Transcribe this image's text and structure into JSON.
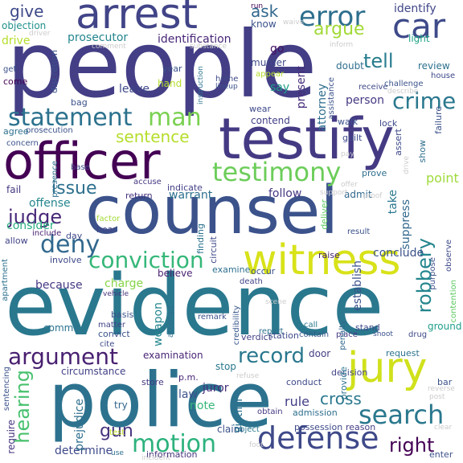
{
  "wordcloud": {
    "words": [
      {
        "text": "people",
        "color": "#433e85"
      },
      {
        "text": "evidence",
        "color": "#2a788e"
      },
      {
        "text": "counsel",
        "color": "#3b528b"
      },
      {
        "text": "police",
        "color": "#2c728e"
      },
      {
        "text": "officer",
        "color": "#440154"
      },
      {
        "text": "testify",
        "color": "#443a83"
      },
      {
        "text": "arrest",
        "color": "#414487"
      },
      {
        "text": "witness",
        "color": "#d8e219"
      },
      {
        "text": "jury",
        "color": "#d0e11c"
      },
      {
        "text": "defense",
        "color": "#3e4989"
      },
      {
        "text": "testimony",
        "color": "#6ccd5a"
      },
      {
        "text": "error",
        "color": "#2e6f8e"
      },
      {
        "text": "car",
        "color": "#3e4a89"
      },
      {
        "text": "statement",
        "color": "#2c728e"
      },
      {
        "text": "man",
        "color": "#7ad151"
      },
      {
        "text": "crime",
        "color": "#2a788e"
      },
      {
        "text": "conviction",
        "color": "#35b779"
      },
      {
        "text": "deny",
        "color": "#31688e"
      },
      {
        "text": "search",
        "color": "#2a788e"
      },
      {
        "text": "motion",
        "color": "#2db27d"
      },
      {
        "text": "argument",
        "color": "#481f70"
      },
      {
        "text": "record",
        "color": "#2a788e"
      },
      {
        "text": "judge",
        "color": "#482878"
      },
      {
        "text": "hearing",
        "color": "#48c16e"
      },
      {
        "text": "right",
        "color": "#440154"
      },
      {
        "text": "gun",
        "color": "#46327e"
      },
      {
        "text": "issue",
        "color": "#2d708e"
      },
      {
        "text": "argue",
        "color": "#a2da37"
      },
      {
        "text": "tell",
        "color": "#287d8e"
      },
      {
        "text": "robbery",
        "color": "#24868e"
      },
      {
        "text": "sentence",
        "color": "#b5de2b"
      },
      {
        "text": "give",
        "color": "#3e4989"
      },
      {
        "text": "ask",
        "color": "#31688e"
      },
      {
        "text": "identify",
        "color": "#404688"
      },
      {
        "text": "objection",
        "color": "#21918c"
      },
      {
        "text": "prosecutor",
        "color": "#24868e"
      },
      {
        "text": "identification",
        "color": "#482677"
      },
      {
        "text": "drive",
        "color": "#b5de2b"
      },
      {
        "text": "driver",
        "color": "#cccccc"
      },
      {
        "text": "know",
        "color": "#3b528b"
      },
      {
        "text": "go",
        "color": "#471164"
      },
      {
        "text": "light",
        "color": "#20a386"
      },
      {
        "text": "review",
        "color": "#2c728e"
      },
      {
        "text": "doubt",
        "color": "#2e6f8e"
      },
      {
        "text": "present",
        "color": "#472c7a"
      },
      {
        "text": "attorney",
        "color": "#2e6f8e"
      },
      {
        "text": "person",
        "color": "#453882"
      },
      {
        "text": "leave",
        "color": "#3e4989"
      },
      {
        "text": "say",
        "color": "#1f9e89"
      },
      {
        "text": "contend",
        "color": "#423f85"
      },
      {
        "text": "warrant",
        "color": "#2d708e"
      },
      {
        "text": "follow",
        "color": "#453882"
      },
      {
        "text": "admit",
        "color": "#31688e"
      },
      {
        "text": "offense",
        "color": "#24868e"
      },
      {
        "text": "consider",
        "color": "#28ae80"
      },
      {
        "text": "charge",
        "color": "#86d549"
      },
      {
        "text": "because",
        "color": "#443983"
      },
      {
        "text": "believe",
        "color": "#481f70"
      },
      {
        "text": "take",
        "color": "#2a788e"
      },
      {
        "text": "point",
        "color": "#9fda3a"
      },
      {
        "text": "suppress",
        "color": "#31688e"
      },
      {
        "text": "conclude",
        "color": "#3b528b"
      },
      {
        "text": "commit",
        "color": "#2c728e"
      },
      {
        "text": "examination",
        "color": "#482576"
      },
      {
        "text": "circumstance",
        "color": "#424086"
      },
      {
        "text": "weapon",
        "color": "#24868e"
      },
      {
        "text": "attempt",
        "color": "#2e6f8e"
      },
      {
        "text": "stop",
        "color": "#2a788e"
      },
      {
        "text": "juror",
        "color": "#472d7b"
      },
      {
        "text": "law",
        "color": "#3b528b"
      },
      {
        "text": "note",
        "color": "#35b779"
      },
      {
        "text": "victim",
        "color": "#2c728e"
      },
      {
        "text": "claim",
        "color": "#3b528b"
      },
      {
        "text": "rule",
        "color": "#433e85"
      },
      {
        "text": "cross",
        "color": "#2a788e"
      },
      {
        "text": "establish",
        "color": "#3b528b"
      },
      {
        "text": "ground",
        "color": "#1f9e89"
      },
      {
        "text": "determine",
        "color": "#3e4989"
      },
      {
        "text": "prejudice",
        "color": "#2e6f8e"
      },
      {
        "text": "require",
        "color": "#46337e"
      },
      {
        "text": "test",
        "color": "#bddf26"
      },
      {
        "text": "fail",
        "color": "#443983"
      },
      {
        "text": "include",
        "color": "#482173"
      },
      {
        "text": "allow",
        "color": "#414487"
      },
      {
        "text": "involve",
        "color": "#3e4989"
      },
      {
        "text": "base",
        "color": "#3e4989"
      },
      {
        "text": "accuse",
        "color": "#453882"
      },
      {
        "text": "indicate",
        "color": "#423f85"
      },
      {
        "text": "return",
        "color": "#46337e"
      },
      {
        "text": "day",
        "color": "#3e4989"
      },
      {
        "text": "hear",
        "color": "#414487"
      },
      {
        "text": "factor",
        "color": "#a2da37"
      },
      {
        "text": "finding",
        "color": "#2c728e"
      },
      {
        "text": "circuit",
        "color": "#3e4989"
      },
      {
        "text": "examine",
        "color": "#2e6f8e"
      },
      {
        "text": "occur",
        "color": "#3b528b"
      },
      {
        "text": "deliver",
        "color": "#5ec962"
      },
      {
        "text": "result",
        "color": "#3b528b"
      },
      {
        "text": "death",
        "color": "#414487"
      },
      {
        "text": "raise",
        "color": "#482173"
      },
      {
        "text": "contain",
        "color": "#38598c"
      },
      {
        "text": "place",
        "color": "#443a83"
      },
      {
        "text": "verdict",
        "color": "#424086"
      },
      {
        "text": "station",
        "color": "#3e4989"
      },
      {
        "text": "credibility",
        "color": "#38598c"
      },
      {
        "text": "remark",
        "color": "#3b528b"
      },
      {
        "text": "door",
        "color": "#433e85"
      },
      {
        "text": "call",
        "color": "#2a788e"
      },
      {
        "text": "report",
        "color": "#2d708e"
      },
      {
        "text": "penalty",
        "color": "#31688e"
      },
      {
        "text": "stand",
        "color": "#3e4989"
      },
      {
        "text": "request",
        "color": "#2c728e"
      },
      {
        "text": "decision",
        "color": "#414487"
      },
      {
        "text": "conduct",
        "color": "#3e4989"
      },
      {
        "text": "provide",
        "color": "#2c728e"
      },
      {
        "text": "obtain",
        "color": "#453882"
      },
      {
        "text": "admission",
        "color": "#2e6f8e"
      },
      {
        "text": "possession",
        "color": "#3e4989"
      },
      {
        "text": "reason",
        "color": "#433e85"
      },
      {
        "text": "object",
        "color": "#2a788e"
      },
      {
        "text": "information",
        "color": "#46337e"
      },
      {
        "text": "use",
        "color": "#2e6f8e"
      },
      {
        "text": "store",
        "color": "#443983"
      },
      {
        "text": "p.m.",
        "color": "#482475"
      },
      {
        "text": "try",
        "color": "#32658e"
      },
      {
        "text": "sentencing",
        "color": "#3b528b"
      },
      {
        "text": "apartment",
        "color": "#2d708e"
      },
      {
        "text": "matter",
        "color": "#414487"
      },
      {
        "text": "convict",
        "color": "#3b528b"
      },
      {
        "text": "cite",
        "color": "#3e4989"
      },
      {
        "text": "vehicle",
        "color": "#46337e"
      },
      {
        "text": "basis",
        "color": "#3b528b"
      },
      {
        "text": "purpose",
        "color": "#3b528b"
      },
      {
        "text": "observe",
        "color": "#3e4989"
      },
      {
        "text": "contention",
        "color": "#5ec962"
      },
      {
        "text": "house",
        "color": "#3e4989"
      },
      {
        "text": "failure",
        "color": "#3b528b"
      },
      {
        "text": "show",
        "color": "#2e6f8e"
      },
      {
        "text": "lock",
        "color": "#3e4989"
      },
      {
        "text": "walk",
        "color": "#3b528b"
      },
      {
        "text": "guilt",
        "color": "#3e4989"
      },
      {
        "text": "prove",
        "color": "#2e6f8e"
      },
      {
        "text": "assert",
        "color": "#3e4989"
      },
      {
        "text": "receive",
        "color": "#3e4989"
      },
      {
        "text": "assistance",
        "color": "#3b528b"
      },
      {
        "text": "instruction",
        "color": "#2c728e"
      },
      {
        "text": "murder",
        "color": "#3e4989"
      },
      {
        "text": "year",
        "color": "#3b528b"
      },
      {
        "text": "hand",
        "color": "#b5de2b"
      },
      {
        "text": "bag",
        "color": "#3b528b"
      },
      {
        "text": "come",
        "color": "#440154"
      },
      {
        "text": "get",
        "color": "#3b528b"
      },
      {
        "text": "discretion",
        "color": "#3b528b"
      },
      {
        "text": "home",
        "color": "#3e4989"
      },
      {
        "text": "prosecution",
        "color": "#3b528b"
      },
      {
        "text": "agree",
        "color": "#2e6f8e"
      },
      {
        "text": "concern",
        "color": "#3b528b"
      },
      {
        "text": "presence",
        "color": "#2e6f8e"
      },
      {
        "text": "wear",
        "color": "#3e4989"
      },
      {
        "text": "appear",
        "color": "#b5de2b"
      },
      {
        "text": "run",
        "color": "#440154"
      },
      {
        "text": "waive",
        "color": "#cccccc"
      },
      {
        "text": "inform",
        "color": "#cccccc"
      },
      {
        "text": "enter",
        "color": "#3b528b"
      },
      {
        "text": "bar",
        "color": "#3b528b"
      },
      {
        "text": "reverse",
        "color": "#cccccc"
      },
      {
        "text": "post",
        "color": "#cccccc"
      },
      {
        "text": "clear",
        "color": "#cccccc"
      },
      {
        "text": "drug",
        "color": "#3e4989"
      },
      {
        "text": "shoot",
        "color": "#3b528b"
      },
      {
        "text": "support",
        "color": "#cccccc"
      },
      {
        "text": "offer",
        "color": "#cccccc"
      },
      {
        "text": "proof",
        "color": "#cccccc"
      },
      {
        "text": "comment",
        "color": "#cccccc"
      },
      {
        "text": "substance",
        "color": "#cccccc"
      },
      {
        "text": "challenge",
        "color": "#3b528b"
      },
      {
        "text": "describe",
        "color": "#cccccc"
      },
      {
        "text": "pay",
        "color": "#cccccc"
      },
      {
        "text": "lineup",
        "color": "#3b528b"
      },
      {
        "text": "scene",
        "color": "#cccccc"
      },
      {
        "text": "foot",
        "color": "#cccccc"
      },
      {
        "text": "refuse",
        "color": "#cccccc"
      },
      {
        "text": "incident",
        "color": "#cccccc"
      },
      {
        "text": "drive",
        "color": "#cccccc"
      }
    ]
  }
}
